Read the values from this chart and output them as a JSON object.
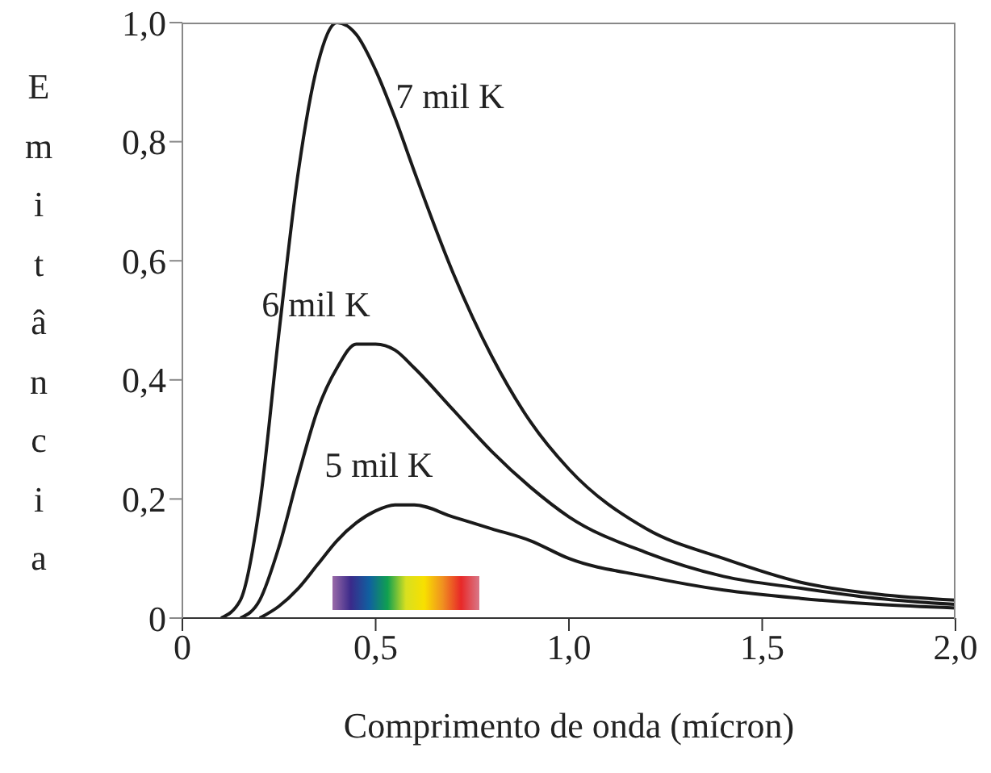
{
  "chart_data": {
    "type": "line",
    "xlabel": "Comprimento de onda (mícron)",
    "ylabel": "Emitância",
    "x": [
      0.1,
      0.15,
      0.2,
      0.25,
      0.3,
      0.35,
      0.4,
      0.45,
      0.5,
      0.55,
      0.6,
      0.7,
      0.8,
      0.9,
      1.0,
      1.2,
      1.4,
      1.6,
      1.8,
      2.0
    ],
    "series": [
      {
        "name": "7 mil K",
        "color": "#1a1a1a",
        "values": [
          0,
          0.03,
          0.19,
          0.48,
          0.75,
          0.93,
          1.0,
          0.98,
          0.92,
          0.84,
          0.75,
          0.58,
          0.44,
          0.33,
          0.25,
          0.15,
          0.1,
          0.06,
          0.04,
          0.03
        ]
      },
      {
        "name": "6 mil K",
        "color": "#1a1a1a",
        "values": [
          null,
          0.0,
          0.03,
          0.12,
          0.24,
          0.35,
          0.42,
          0.46,
          0.46,
          0.45,
          0.42,
          0.35,
          0.28,
          0.22,
          0.17,
          0.11,
          0.07,
          0.05,
          0.033,
          0.023
        ]
      },
      {
        "name": "5 mil K",
        "color": "#1a1a1a",
        "values": [
          null,
          null,
          0.0,
          0.02,
          0.05,
          0.09,
          0.13,
          0.16,
          0.18,
          0.19,
          0.19,
          0.17,
          0.15,
          0.13,
          0.1,
          0.07,
          0.047,
          0.033,
          0.023,
          0.017
        ]
      }
    ],
    "xlim": [
      0,
      2
    ],
    "xticks": [
      0,
      {
        "value": 0.5,
        "label": "0,5"
      },
      {
        "value": 1,
        "label": "1,0"
      },
      {
        "value": 1.5,
        "label": "1,5"
      },
      {
        "value": 2,
        "label": "2,0"
      }
    ],
    "ylim": [
      0,
      1
    ],
    "yticks": [
      0,
      {
        "value": 0.2,
        "label": "0,2"
      },
      {
        "value": 0.4,
        "label": "0,4"
      },
      {
        "value": 0.6,
        "label": "0,6"
      },
      {
        "value": 0.8,
        "label": "0,8"
      },
      {
        "value": 1,
        "label": "1,0"
      }
    ],
    "grid": false,
    "legend": false
  }
}
